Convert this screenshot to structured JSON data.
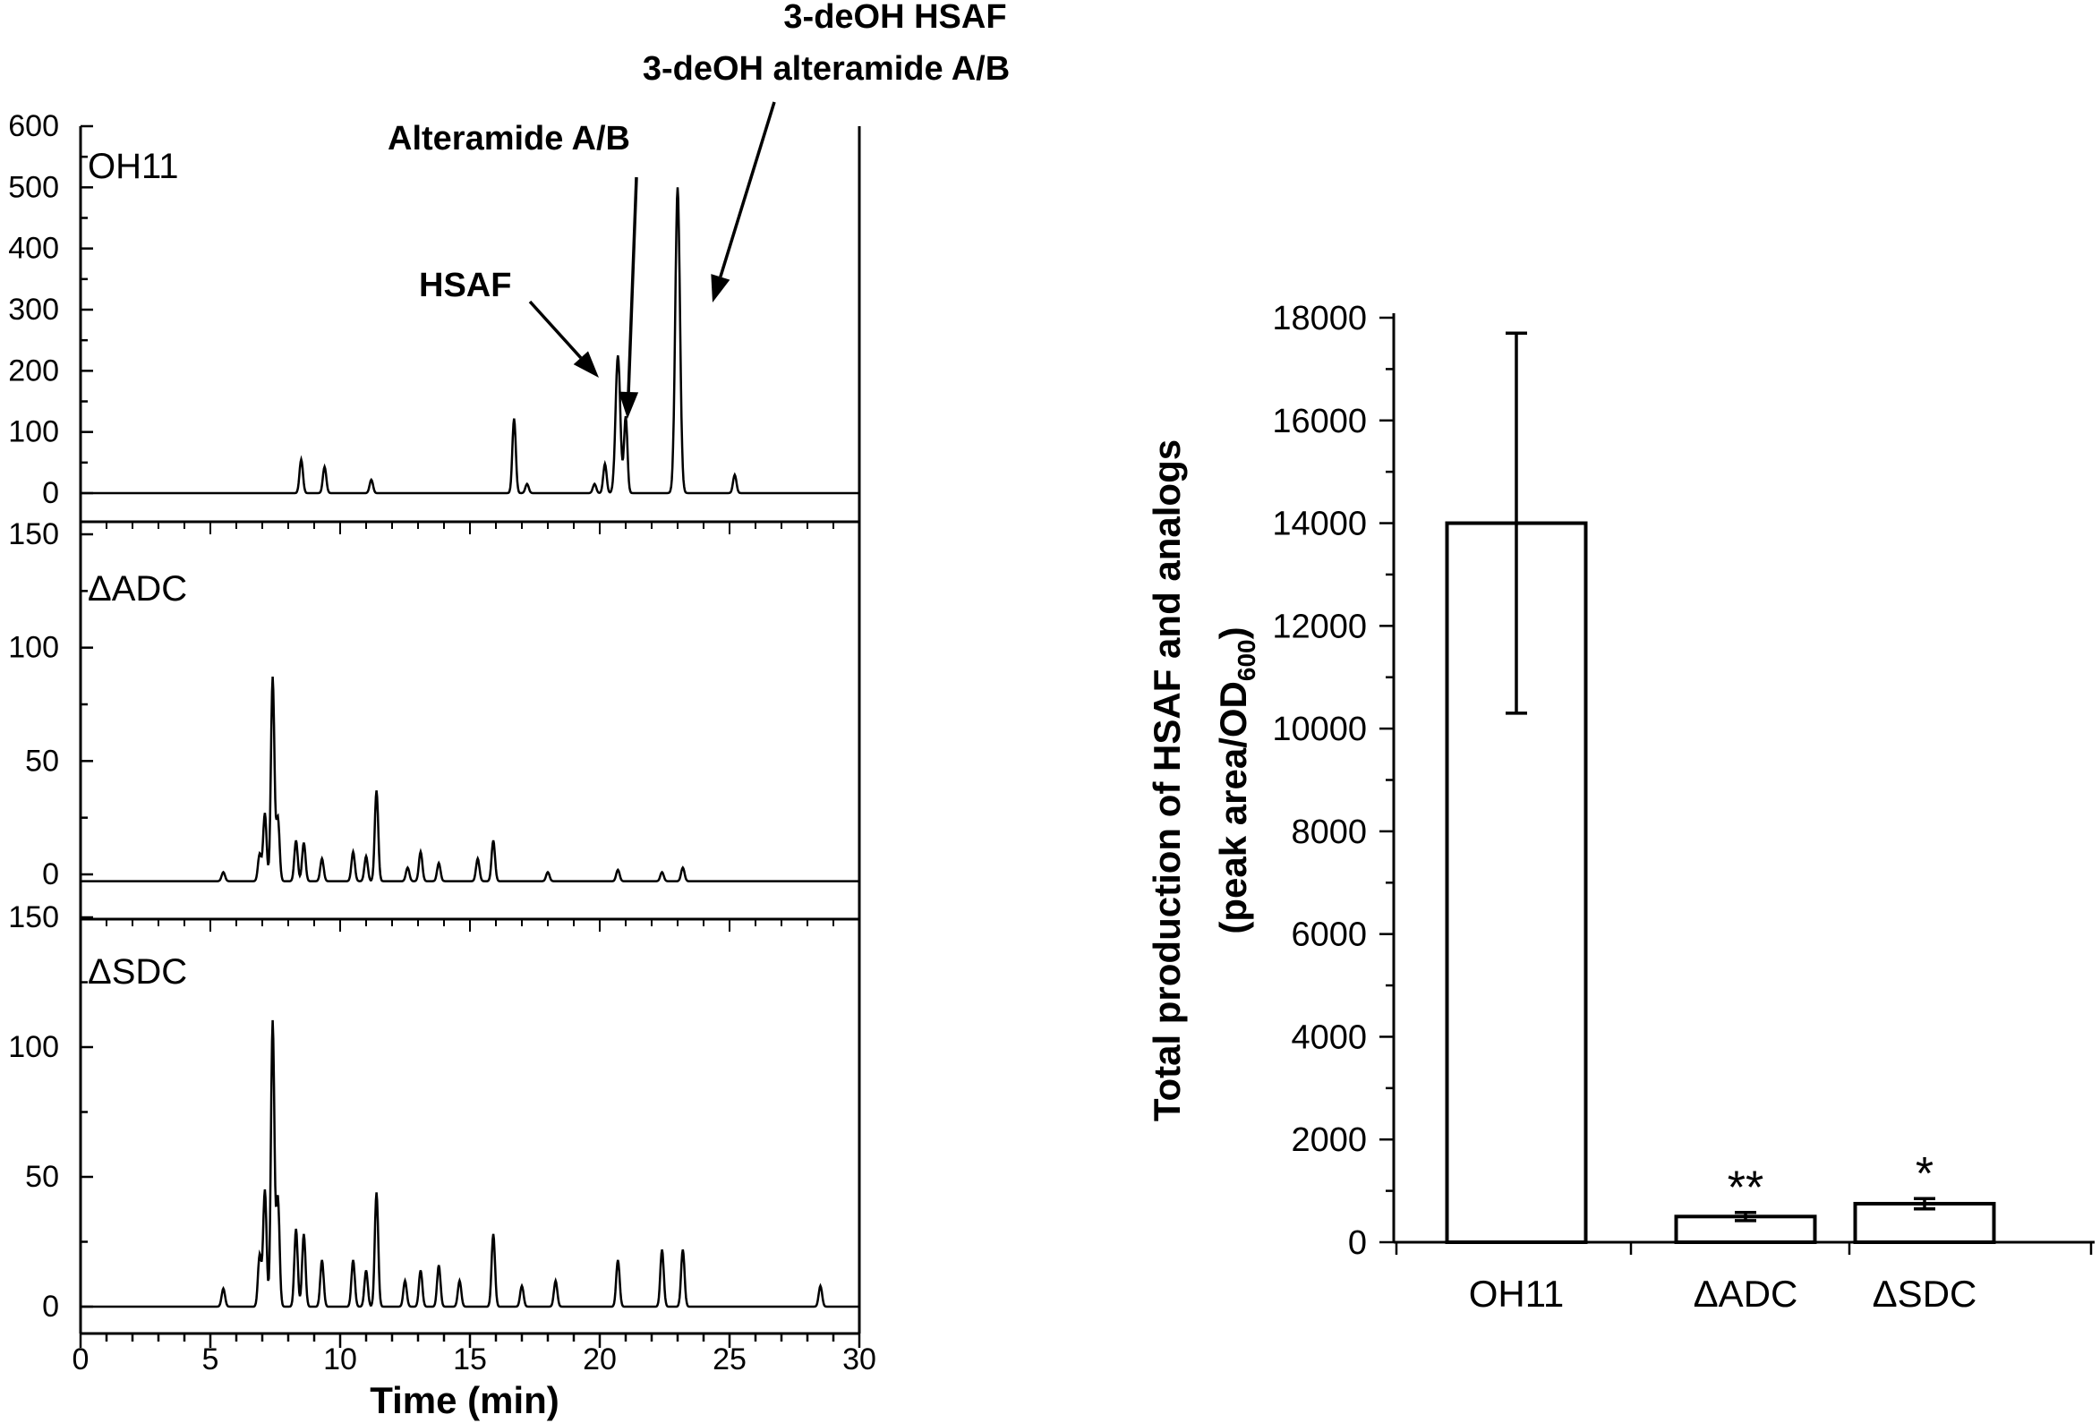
{
  "chart_data": [
    {
      "type": "line",
      "xlabel": "Time (min)",
      "x_ticks": [
        0,
        5,
        10,
        15,
        20,
        25,
        30
      ],
      "xlim": [
        0,
        30
      ],
      "panels": [
        {
          "label": "OH11",
          "ylim": [
            0,
            600
          ],
          "y_ticks": [
            0,
            100,
            200,
            300,
            400,
            500,
            600
          ],
          "baseline": 0,
          "peaks": [
            {
              "x": 8.5,
              "y": 55
            },
            {
              "x": 9.4,
              "y": 43
            },
            {
              "x": 11.2,
              "y": 22
            },
            {
              "x": 16.7,
              "y": 122
            },
            {
              "x": 17.2,
              "y": 15
            },
            {
              "x": 19.8,
              "y": 15
            },
            {
              "x": 20.2,
              "y": 48
            },
            {
              "x": 20.7,
              "y": 225
            },
            {
              "x": 21.0,
              "y": 125
            },
            {
              "x": 23.0,
              "y": 500
            },
            {
              "x": 25.2,
              "y": 30
            }
          ],
          "annotations": [
            {
              "text": "HSAF",
              "points_to_x": 20.7
            },
            {
              "text": "Alteramide A/B",
              "points_to_x": 21.0
            },
            {
              "text": "3-deOH HSAF",
              "points_to_x": 23.0
            },
            {
              "text": "3-deOH alteramide A/B",
              "points_to_x": 23.0
            }
          ]
        },
        {
          "label": "ΔADC",
          "ylim": [
            0,
            150
          ],
          "y_ticks": [
            0,
            50,
            100,
            150
          ],
          "baseline": -3,
          "peaks": [
            {
              "x": 5.5,
              "y": 4
            },
            {
              "x": 6.9,
              "y": 12
            },
            {
              "x": 7.1,
              "y": 30
            },
            {
              "x": 7.4,
              "y": 90
            },
            {
              "x": 7.6,
              "y": 28
            },
            {
              "x": 8.3,
              "y": 18
            },
            {
              "x": 8.6,
              "y": 17
            },
            {
              "x": 9.3,
              "y": 10
            },
            {
              "x": 10.5,
              "y": 13
            },
            {
              "x": 11.0,
              "y": 11
            },
            {
              "x": 11.4,
              "y": 40
            },
            {
              "x": 12.6,
              "y": 6
            },
            {
              "x": 13.1,
              "y": 13
            },
            {
              "x": 13.8,
              "y": 8
            },
            {
              "x": 15.3,
              "y": 10
            },
            {
              "x": 15.9,
              "y": 18
            },
            {
              "x": 18.0,
              "y": 4
            },
            {
              "x": 20.7,
              "y": 5
            },
            {
              "x": 22.4,
              "y": 4
            },
            {
              "x": 23.2,
              "y": 6
            }
          ]
        },
        {
          "label": "ΔSDC",
          "ylim": [
            0,
            150
          ],
          "y_ticks": [
            0,
            50,
            100,
            150
          ],
          "baseline": 0,
          "peaks": [
            {
              "x": 5.5,
              "y": 7
            },
            {
              "x": 6.9,
              "y": 20
            },
            {
              "x": 7.1,
              "y": 45
            },
            {
              "x": 7.4,
              "y": 110
            },
            {
              "x": 7.6,
              "y": 42
            },
            {
              "x": 8.3,
              "y": 30
            },
            {
              "x": 8.6,
              "y": 28
            },
            {
              "x": 9.3,
              "y": 18
            },
            {
              "x": 10.5,
              "y": 18
            },
            {
              "x": 11.0,
              "y": 14
            },
            {
              "x": 11.4,
              "y": 44
            },
            {
              "x": 12.5,
              "y": 10
            },
            {
              "x": 13.1,
              "y": 14
            },
            {
              "x": 13.8,
              "y": 16
            },
            {
              "x": 14.6,
              "y": 10
            },
            {
              "x": 15.9,
              "y": 28
            },
            {
              "x": 17.0,
              "y": 8
            },
            {
              "x": 18.3,
              "y": 10
            },
            {
              "x": 20.7,
              "y": 18
            },
            {
              "x": 22.4,
              "y": 22
            },
            {
              "x": 23.2,
              "y": 22
            },
            {
              "x": 28.5,
              "y": 8
            }
          ]
        }
      ]
    },
    {
      "type": "bar",
      "categories": [
        "OH11",
        "ΔADC",
        "ΔSDC"
      ],
      "values": [
        14000,
        500,
        750
      ],
      "errors": [
        3700,
        80,
        100
      ],
      "significance": [
        "",
        "**",
        "*"
      ],
      "ylabel_line1": "Total production of HSAF and analogs",
      "ylabel_line2_prefix": "(peak area/OD",
      "ylabel_line2_sub": "600",
      "ylabel_line2_suffix": ")",
      "ylim": [
        0,
        18000
      ],
      "y_ticks": [
        0,
        2000,
        4000,
        6000,
        8000,
        10000,
        12000,
        14000,
        16000,
        18000
      ],
      "bar_fill": "#ffffff",
      "stroke": "#000000"
    }
  ]
}
